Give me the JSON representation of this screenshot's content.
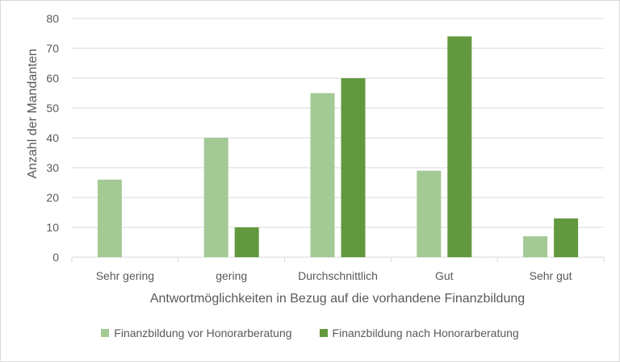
{
  "chart_data": {
    "type": "bar",
    "categories": [
      "Sehr gering",
      "gering",
      "Durchschnittlich",
      "Gut",
      "Sehr gut"
    ],
    "series": [
      {
        "name": "Finanzbildung vor Honorarberatung",
        "values": [
          26,
          40,
          55,
          29,
          7
        ],
        "color": "#a3c994"
      },
      {
        "name": "Finanzbildung nach Honorarberatung",
        "values": [
          0,
          10,
          60,
          74,
          13
        ],
        "color": "#62993e"
      }
    ],
    "xlabel": "Antwortmöglichkeiten in Bezug auf die vorhandene Finanzbildung",
    "ylabel": "Anzahl der Mandanten",
    "ylim": [
      0,
      80
    ],
    "yticks": [
      0,
      10,
      20,
      30,
      40,
      50,
      60,
      70,
      80
    ],
    "grid": true,
    "legend_position": "bottom"
  }
}
